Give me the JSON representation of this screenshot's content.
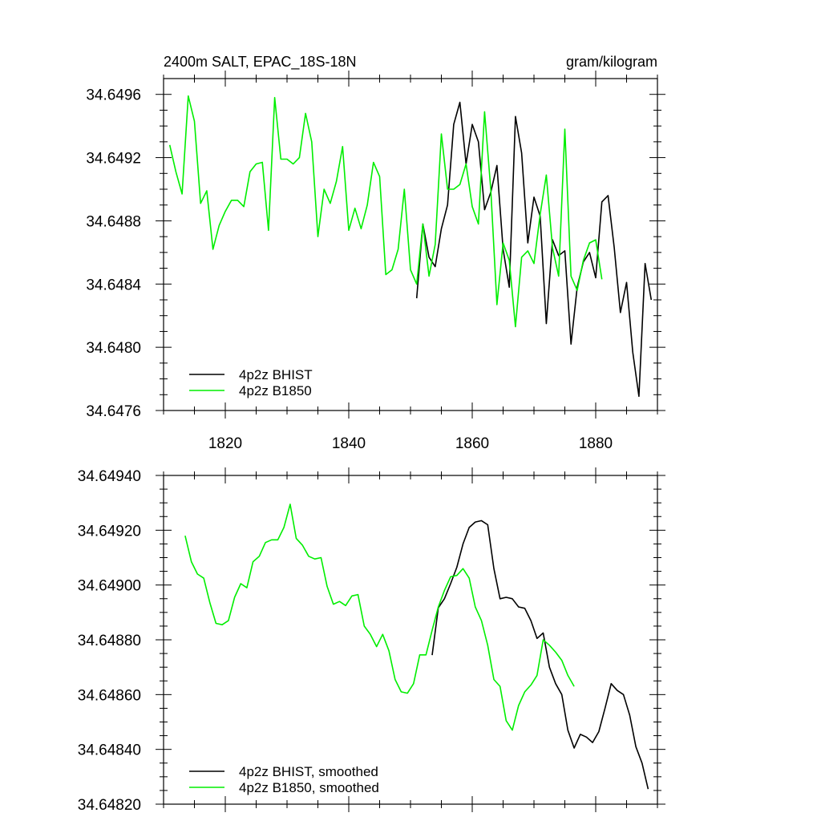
{
  "chart_data": [
    {
      "type": "line",
      "title_left": "2400m SALT, EPAC_18S-18N",
      "title_right": "gram/kilogram",
      "xlim": [
        1810,
        1890
      ],
      "ylim": [
        34.6476,
        34.6497
      ],
      "xticks": [
        1820,
        1840,
        1860,
        1880
      ],
      "yticks": [
        34.6476,
        34.648,
        34.6484,
        34.6488,
        34.6492,
        34.6496
      ],
      "ytick_labels": [
        "34.6476",
        "34.6480",
        "34.6484",
        "34.6488",
        "34.6492",
        "34.6496"
      ],
      "legend_position": "bottom-left",
      "series": [
        {
          "name": "4p2z BHIST",
          "color": "#000000",
          "x_start": 1851,
          "values": [
            34.64831,
            34.64878,
            34.64857,
            34.64851,
            34.64875,
            34.6489,
            34.64941,
            34.64955,
            34.64916,
            34.64941,
            34.6493,
            34.64887,
            34.64898,
            34.64915,
            34.64862,
            34.64838,
            34.64946,
            34.64923,
            34.64866,
            34.64895,
            34.64883,
            34.64815,
            34.64868,
            34.64858,
            34.64861,
            34.64802,
            34.64838,
            34.64854,
            34.6486,
            34.64844,
            34.64892,
            34.64896,
            34.64863,
            34.64822,
            34.64841,
            34.64797,
            34.64769,
            34.64853,
            34.6483
          ]
        },
        {
          "name": "4p2z B1850",
          "color": "#00ee00",
          "x_start": 1811,
          "values": [
            34.64928,
            34.64911,
            34.64897,
            34.64959,
            34.64943,
            34.64891,
            34.64899,
            34.64862,
            34.64877,
            34.64886,
            34.64893,
            34.64893,
            34.64889,
            34.64911,
            34.64916,
            34.64917,
            34.64874,
            34.64958,
            34.64919,
            34.64919,
            34.64916,
            34.6492,
            34.64948,
            34.6493,
            34.6487,
            34.649,
            34.64891,
            34.64905,
            34.64927,
            34.64874,
            34.64888,
            34.64875,
            34.6489,
            34.64917,
            34.64908,
            34.64846,
            34.64849,
            34.64862,
            34.649,
            34.64849,
            34.6484,
            34.64878,
            34.64845,
            34.64865,
            34.64935,
            34.649,
            34.649,
            34.64903,
            34.64916,
            34.64889,
            34.64878,
            34.64949,
            34.649,
            34.64827,
            34.64866,
            34.64855,
            34.64813,
            34.64857,
            34.64861,
            34.64853,
            34.64884,
            34.64909,
            34.64863,
            34.64845,
            34.64938,
            34.64845,
            34.64836,
            34.64855,
            34.64866,
            34.64868,
            34.64843
          ]
        }
      ]
    },
    {
      "type": "line",
      "xlim": [
        1810,
        1890
      ],
      "ylim": [
        34.6482,
        34.6494
      ],
      "xticks": [
        1820,
        1840,
        1860,
        1880
      ],
      "yticks": [
        34.6482,
        34.6484,
        34.6486,
        34.6488,
        34.649,
        34.6492,
        34.6494
      ],
      "ytick_labels": [
        "34.64820",
        "34.64840",
        "34.64860",
        "34.64880",
        "34.64900",
        "34.64920",
        "34.64940"
      ],
      "legend_position": "bottom-left",
      "series": [
        {
          "name": "4p2z BHIST, smoothed",
          "color": "#000000",
          "x_start": 1853.5,
          "values": [
            34.648744,
            34.648917,
            34.64895,
            34.649005,
            34.649065,
            34.64915,
            34.64921,
            34.64923,
            34.649235,
            34.64922,
            34.64906,
            34.64895,
            34.648955,
            34.64895,
            34.64892,
            34.648915,
            34.64887,
            34.648805,
            34.648825,
            34.6487,
            34.64864,
            34.6486,
            34.64847,
            34.648405,
            34.648455,
            34.648445,
            34.648425,
            34.648465,
            34.64855,
            34.64864,
            34.648615,
            34.6486,
            34.648525,
            34.64841,
            34.64835,
            34.648255
          ]
        },
        {
          "name": "4p2z B1850, smoothed",
          "color": "#00ee00",
          "x_start": 1813.5,
          "values": [
            34.64918,
            34.649085,
            34.64904,
            34.649025,
            34.648935,
            34.64886,
            34.648855,
            34.64887,
            34.648955,
            34.649005,
            34.64899,
            34.649085,
            34.649105,
            34.649155,
            34.649165,
            34.649165,
            34.64921,
            34.649295,
            34.64917,
            34.649145,
            34.649105,
            34.649095,
            34.6491,
            34.648995,
            34.64893,
            34.64894,
            34.648925,
            34.64896,
            34.648965,
            34.64885,
            34.64882,
            34.648775,
            34.64882,
            34.64876,
            34.648655,
            34.64861,
            34.648605,
            34.64864,
            34.648745,
            34.648745,
            34.648835,
            34.64892,
            34.64898,
            34.64903,
            34.649035,
            34.64906,
            34.649025,
            34.64892,
            34.64887,
            34.64878,
            34.648655,
            34.64863,
            34.648505,
            34.64847,
            34.64856,
            34.64861,
            34.648635,
            34.64867,
            34.6488,
            34.64878,
            34.648755,
            34.648725,
            34.64867,
            34.64863
          ]
        }
      ]
    }
  ]
}
